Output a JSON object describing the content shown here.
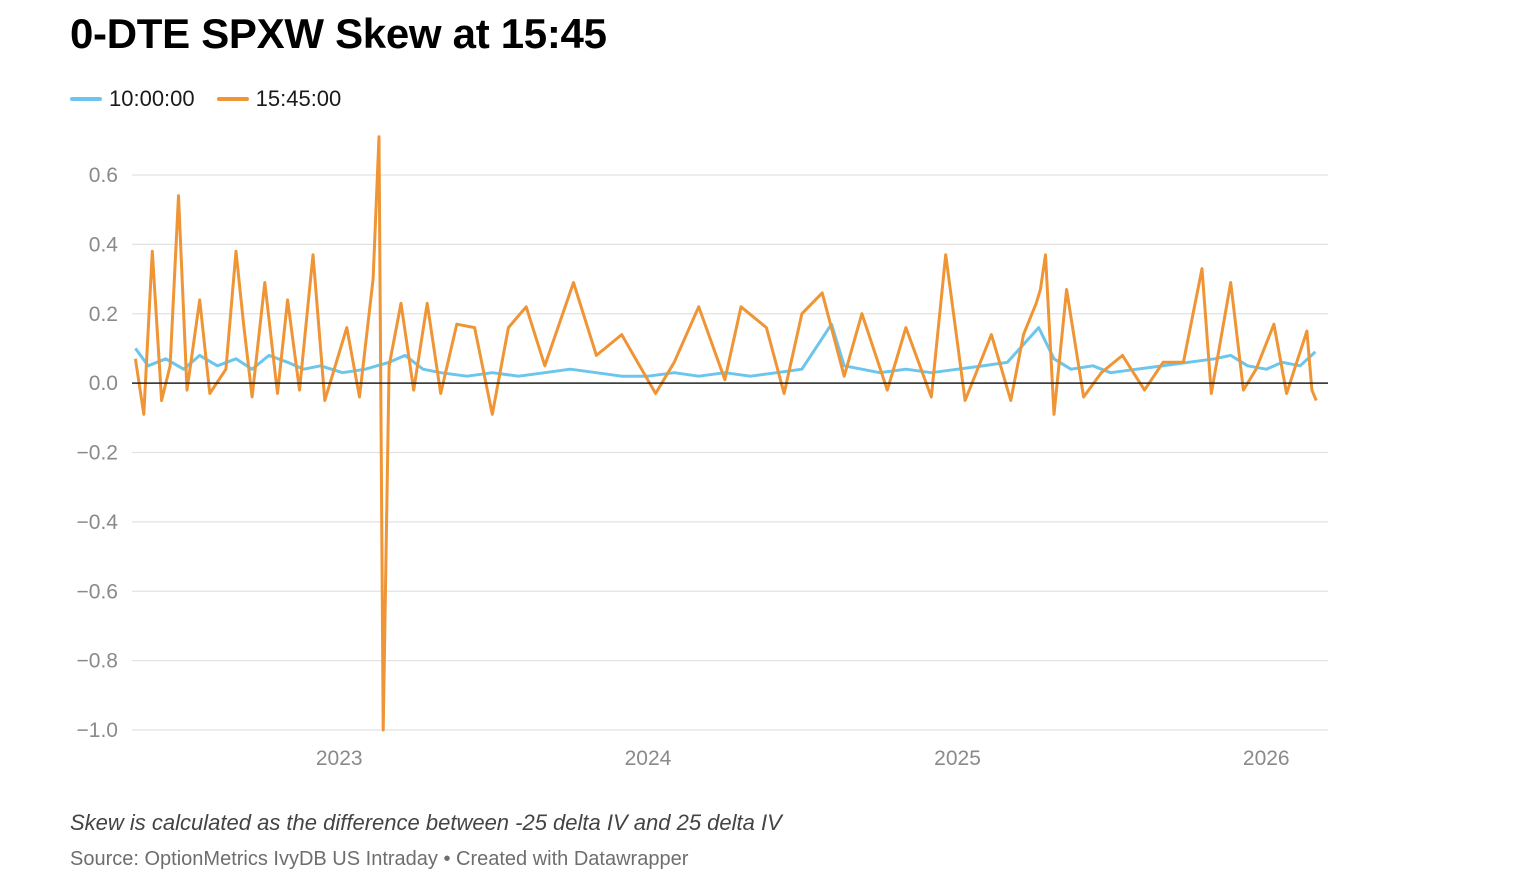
{
  "title": "0-DTE SPXW Skew at 15:45",
  "legend": [
    {
      "label": "10:00:00",
      "color": "#6cc5ec"
    },
    {
      "label": "15:45:00",
      "color": "#ef9535"
    }
  ],
  "note": "Skew is calculated as the difference between -25 delta IV and 25 delta IV",
  "source": "Source: OptionMetrics IvyDB US Intraday • Created with Datawrapper",
  "chart_data": {
    "type": "line",
    "title": "0-DTE SPXW Skew at 15:45",
    "xlabel": "",
    "ylabel": "",
    "xlim": [
      "2022-05-01",
      "2026-03-15"
    ],
    "ylim": [
      -1.0,
      0.7
    ],
    "y_ticks": [
      0.6,
      0.4,
      0.2,
      0.0,
      -0.2,
      -0.4,
      -0.6,
      -0.8,
      -1.0
    ],
    "y_tick_labels": [
      "0.6",
      "0.4",
      "0.2",
      "0.0",
      "−0.2",
      "−0.4",
      "−0.6",
      "−0.8",
      "−1.0"
    ],
    "x_ticks": [
      "2023-01-01",
      "2024-01-01",
      "2025-01-01",
      "2026-01-01"
    ],
    "x_tick_labels": [
      "2023",
      "2024",
      "2025",
      "2026"
    ],
    "grid": true,
    "legend_position": "top-left",
    "series": [
      {
        "name": "10:00:00",
        "color": "#6cc5ec",
        "points": [
          [
            "2022-05-05",
            0.1
          ],
          [
            "2022-05-20",
            0.05
          ],
          [
            "2022-06-10",
            0.07
          ],
          [
            "2022-07-01",
            0.04
          ],
          [
            "2022-07-20",
            0.08
          ],
          [
            "2022-08-10",
            0.05
          ],
          [
            "2022-09-01",
            0.07
          ],
          [
            "2022-09-20",
            0.04
          ],
          [
            "2022-10-10",
            0.08
          ],
          [
            "2022-11-01",
            0.06
          ],
          [
            "2022-11-20",
            0.04
          ],
          [
            "2022-12-10",
            0.05
          ],
          [
            "2023-01-05",
            0.03
          ],
          [
            "2023-02-01",
            0.04
          ],
          [
            "2023-03-01",
            0.06
          ],
          [
            "2023-03-20",
            0.08
          ],
          [
            "2023-04-10",
            0.04
          ],
          [
            "2023-05-01",
            0.03
          ],
          [
            "2023-06-01",
            0.02
          ],
          [
            "2023-07-01",
            0.03
          ],
          [
            "2023-08-01",
            0.02
          ],
          [
            "2023-09-01",
            0.03
          ],
          [
            "2023-10-01",
            0.04
          ],
          [
            "2023-11-01",
            0.03
          ],
          [
            "2023-12-01",
            0.02
          ],
          [
            "2024-01-01",
            0.02
          ],
          [
            "2024-02-01",
            0.03
          ],
          [
            "2024-03-01",
            0.02
          ],
          [
            "2024-04-01",
            0.03
          ],
          [
            "2024-05-01",
            0.02
          ],
          [
            "2024-06-01",
            0.03
          ],
          [
            "2024-07-01",
            0.04
          ],
          [
            "2024-08-05",
            0.17
          ],
          [
            "2024-08-20",
            0.05
          ],
          [
            "2024-09-10",
            0.04
          ],
          [
            "2024-10-01",
            0.03
          ],
          [
            "2024-11-01",
            0.04
          ],
          [
            "2024-12-01",
            0.03
          ],
          [
            "2025-01-01",
            0.04
          ],
          [
            "2025-02-01",
            0.05
          ],
          [
            "2025-03-01",
            0.06
          ],
          [
            "2025-04-07",
            0.16
          ],
          [
            "2025-04-25",
            0.07
          ],
          [
            "2025-05-15",
            0.04
          ],
          [
            "2025-06-10",
            0.05
          ],
          [
            "2025-07-01",
            0.03
          ],
          [
            "2025-08-01",
            0.04
          ],
          [
            "2025-09-01",
            0.05
          ],
          [
            "2025-10-01",
            0.06
          ],
          [
            "2025-11-01",
            0.07
          ],
          [
            "2025-11-20",
            0.08
          ],
          [
            "2025-12-10",
            0.05
          ],
          [
            "2026-01-01",
            0.04
          ],
          [
            "2026-01-20",
            0.06
          ],
          [
            "2026-02-10",
            0.05
          ],
          [
            "2026-02-28",
            0.09
          ]
        ]
      },
      {
        "name": "15:45:00",
        "color": "#ef9535",
        "points": [
          [
            "2022-05-05",
            0.07
          ],
          [
            "2022-05-15",
            -0.09
          ],
          [
            "2022-05-25",
            0.38
          ],
          [
            "2022-06-05",
            -0.05
          ],
          [
            "2022-06-15",
            0.05
          ],
          [
            "2022-06-25",
            0.54
          ],
          [
            "2022-07-05",
            -0.02
          ],
          [
            "2022-07-20",
            0.24
          ],
          [
            "2022-08-01",
            -0.03
          ],
          [
            "2022-08-20",
            0.04
          ],
          [
            "2022-09-01",
            0.38
          ],
          [
            "2022-09-10",
            0.17
          ],
          [
            "2022-09-20",
            -0.04
          ],
          [
            "2022-10-05",
            0.29
          ],
          [
            "2022-10-20",
            -0.03
          ],
          [
            "2022-11-01",
            0.24
          ],
          [
            "2022-11-15",
            -0.02
          ],
          [
            "2022-12-01",
            0.37
          ],
          [
            "2022-12-15",
            -0.05
          ],
          [
            "2023-01-10",
            0.16
          ],
          [
            "2023-01-25",
            -0.04
          ],
          [
            "2023-02-10",
            0.3
          ],
          [
            "2023-02-17",
            0.71
          ],
          [
            "2023-02-22",
            -1.0
          ],
          [
            "2023-03-01",
            0.05
          ],
          [
            "2023-03-15",
            0.23
          ],
          [
            "2023-03-30",
            -0.02
          ],
          [
            "2023-04-15",
            0.23
          ],
          [
            "2023-05-01",
            -0.03
          ],
          [
            "2023-05-20",
            0.17
          ],
          [
            "2023-06-10",
            0.16
          ],
          [
            "2023-07-01",
            -0.09
          ],
          [
            "2023-07-20",
            0.16
          ],
          [
            "2023-08-10",
            0.22
          ],
          [
            "2023-09-01",
            0.05
          ],
          [
            "2023-10-05",
            0.29
          ],
          [
            "2023-11-01",
            0.08
          ],
          [
            "2023-12-01",
            0.14
          ],
          [
            "2024-01-10",
            -0.03
          ],
          [
            "2024-02-01",
            0.06
          ],
          [
            "2024-03-01",
            0.22
          ],
          [
            "2024-04-01",
            0.01
          ],
          [
            "2024-04-20",
            0.22
          ],
          [
            "2024-05-20",
            0.16
          ],
          [
            "2024-06-10",
            -0.03
          ],
          [
            "2024-07-01",
            0.2
          ],
          [
            "2024-07-25",
            0.26
          ],
          [
            "2024-08-20",
            0.02
          ],
          [
            "2024-09-10",
            0.2
          ],
          [
            "2024-10-10",
            -0.02
          ],
          [
            "2024-11-01",
            0.16
          ],
          [
            "2024-12-01",
            -0.04
          ],
          [
            "2024-12-18",
            0.37
          ],
          [
            "2025-01-10",
            -0.05
          ],
          [
            "2025-02-10",
            0.14
          ],
          [
            "2025-03-05",
            -0.05
          ],
          [
            "2025-03-20",
            0.14
          ],
          [
            "2025-04-04",
            0.23
          ],
          [
            "2025-04-09",
            0.27
          ],
          [
            "2025-04-15",
            0.37
          ],
          [
            "2025-04-25",
            -0.09
          ],
          [
            "2025-05-10",
            0.27
          ],
          [
            "2025-05-30",
            -0.04
          ],
          [
            "2025-06-20",
            0.03
          ],
          [
            "2025-07-15",
            0.08
          ],
          [
            "2025-08-10",
            -0.02
          ],
          [
            "2025-09-01",
            0.06
          ],
          [
            "2025-09-25",
            0.06
          ],
          [
            "2025-10-17",
            0.33
          ],
          [
            "2025-10-28",
            -0.03
          ],
          [
            "2025-11-20",
            0.29
          ],
          [
            "2025-12-05",
            -0.02
          ],
          [
            "2025-12-20",
            0.04
          ],
          [
            "2026-01-10",
            0.17
          ],
          [
            "2026-01-25",
            -0.03
          ],
          [
            "2026-02-10",
            0.09
          ],
          [
            "2026-02-18",
            0.15
          ],
          [
            "2026-02-24",
            -0.02
          ],
          [
            "2026-03-01",
            -0.05
          ]
        ]
      }
    ]
  }
}
